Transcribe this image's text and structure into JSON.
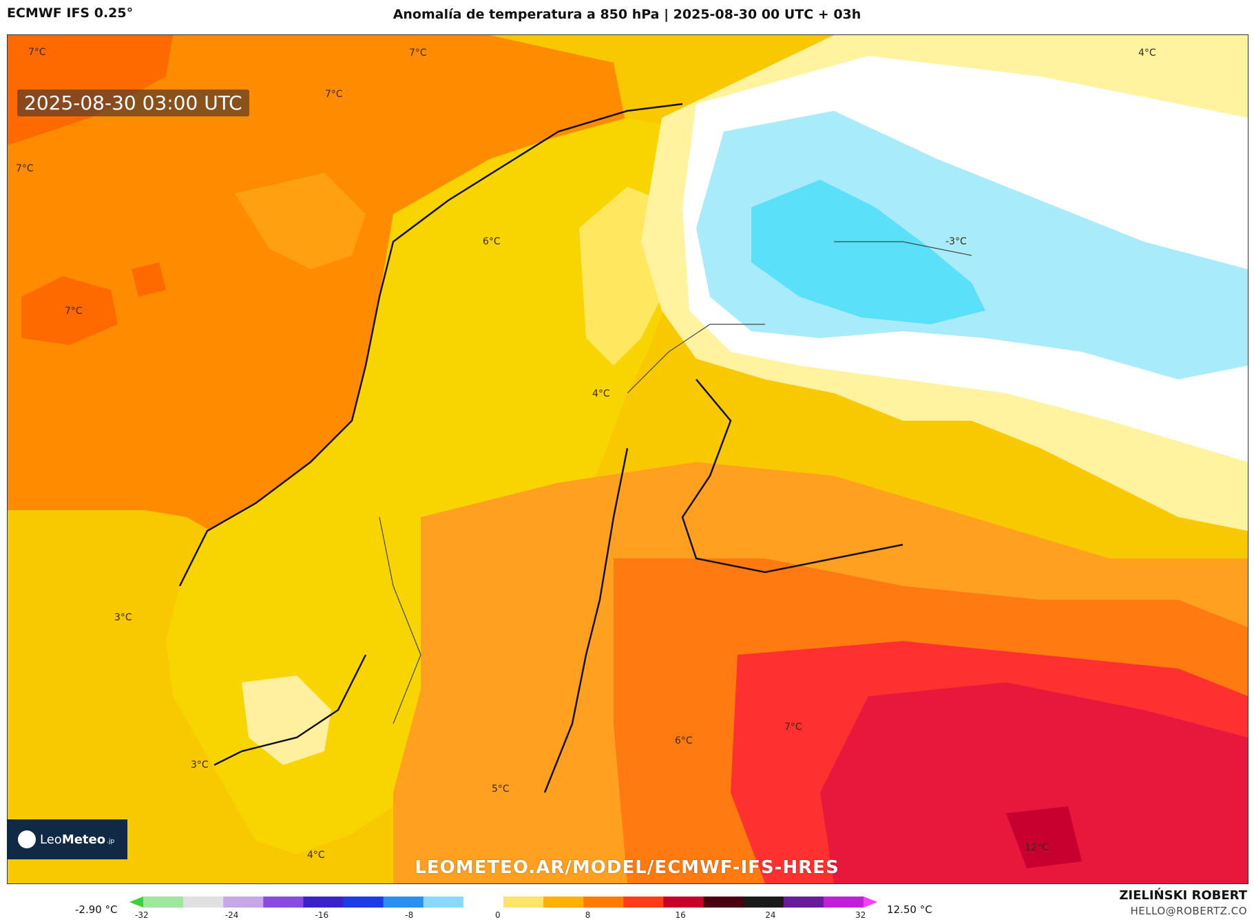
{
  "header": {
    "model": "ECMWF IFS 0.25°",
    "title": "Anomalía de temperatura a 850 hPa | 2025-08-30 00 UTC + 03h"
  },
  "map": {
    "timestamp": "2025-08-30 03:00 UTC",
    "watermark": "LEOMETEO.AR/MODEL/ECMWF-IFS-HRES",
    "labels": [
      {
        "text": "7°C"
      },
      {
        "text": "7°C"
      },
      {
        "text": "7°C"
      },
      {
        "text": "7°C"
      },
      {
        "text": "7°C"
      },
      {
        "text": "4°C"
      },
      {
        "text": "6°C"
      },
      {
        "text": "-3°C"
      },
      {
        "text": "4°C"
      },
      {
        "text": "3°C"
      },
      {
        "text": "3°C"
      },
      {
        "text": "5°C"
      },
      {
        "text": "6°C"
      },
      {
        "text": "7°C"
      },
      {
        "text": "12°C"
      },
      {
        "text": "4°C"
      }
    ]
  },
  "logo": {
    "brand_light": "Leo",
    "brand_bold": "Meteo",
    "brand_suffix": ".jp"
  },
  "colorbar": {
    "min_label": "-2.90 °C",
    "max_label": "12.50 °C",
    "ticks": [
      "-32",
      "-24",
      "-16",
      "-8",
      "0",
      "8",
      "16",
      "24",
      "32"
    ],
    "colors": [
      "#3ad13a",
      "#9ee89e",
      "#e0e0e0",
      "#c6a7e8",
      "#8a4be0",
      "#3a23c8",
      "#1d3ce8",
      "#2a8ff0",
      "#8ad8ff",
      "#ffffff",
      "#ffe36a",
      "#ffb000",
      "#ff7a00",
      "#ff3b1a",
      "#c8002a",
      "#4a0010",
      "#1a1a1a",
      "#6a1b9a",
      "#c21fd8",
      "#ff3aff"
    ]
  },
  "credits": {
    "author": "ZIELIŃSKI ROBERT",
    "email": "HELLO@ROBERTZ.CO"
  }
}
